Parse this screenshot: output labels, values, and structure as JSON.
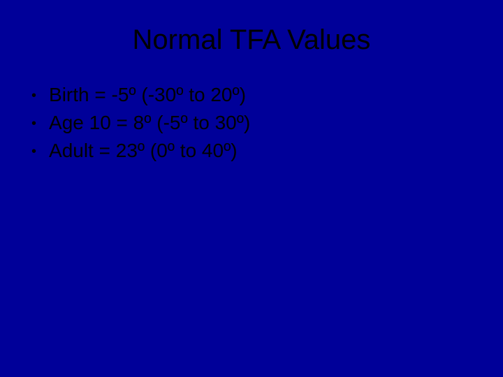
{
  "slide": {
    "title": "Normal TFA Values",
    "bullets": [
      {
        "text": "Birth = -5º (-30º to 20º)"
      },
      {
        "text": "Age 10 = 8º (-5º to 30º)"
      },
      {
        "text": "Adult = 23º (0º to 40º)"
      }
    ]
  },
  "style": {
    "background_color": "#000099",
    "text_color": "#000000",
    "title_fontsize": 40,
    "bullet_fontsize": 28,
    "font_family": "Arial, sans-serif"
  }
}
